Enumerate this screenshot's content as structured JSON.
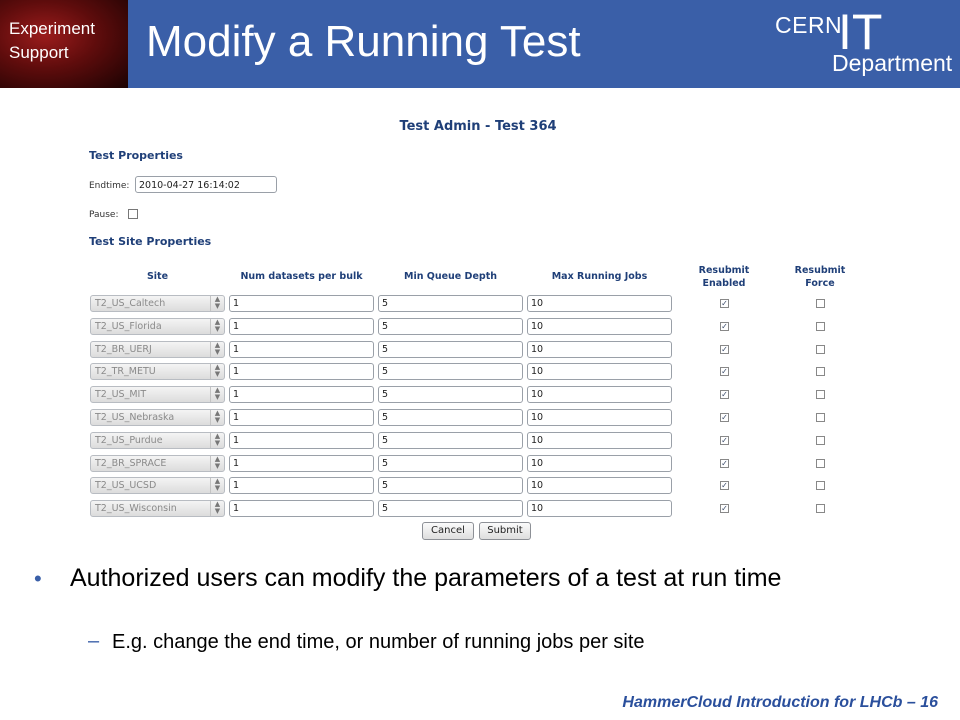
{
  "slide": {
    "corner_line1": "Experiment",
    "corner_line2": "Support",
    "title": "Modify a Running Test",
    "logo_cern": "CERN",
    "logo_it": "IT",
    "logo_department": "Department",
    "bullet": "Authorized users can modify the parameters of a test at run time",
    "sub_bullet": "E.g. change the end time, or number of running jobs per site",
    "footer": "HammerCloud Introduction for LHCb – 16"
  },
  "admin": {
    "title": "Test Admin - Test 364",
    "test_properties": "Test Properties",
    "endtime_label": "Endtime:",
    "endtime_value": "2010-04-27 16:14:02",
    "pause_label": "Pause:",
    "site_properties": "Test Site Properties",
    "headers": {
      "site": "Site",
      "num_datasets": "Num datasets per bulk",
      "min_queue": "Min Queue Depth",
      "max_running": "Max Running Jobs",
      "resubmit_enabled": "Resubmit Enabled",
      "resubmit_force": "Resubmit Force"
    },
    "rows": [
      {
        "site": "T2_US_Caltech",
        "num": "1",
        "minq": "5",
        "maxrun": "10",
        "enabled": true,
        "force": false
      },
      {
        "site": "T2_US_Florida",
        "num": "1",
        "minq": "5",
        "maxrun": "10",
        "enabled": true,
        "force": false
      },
      {
        "site": "T2_BR_UERJ",
        "num": "1",
        "minq": "5",
        "maxrun": "10",
        "enabled": true,
        "force": false
      },
      {
        "site": "T2_TR_METU",
        "num": "1",
        "minq": "5",
        "maxrun": "10",
        "enabled": true,
        "force": false
      },
      {
        "site": "T2_US_MIT",
        "num": "1",
        "minq": "5",
        "maxrun": "10",
        "enabled": true,
        "force": false
      },
      {
        "site": "T2_US_Nebraska",
        "num": "1",
        "minq": "5",
        "maxrun": "10",
        "enabled": true,
        "force": false
      },
      {
        "site": "T2_US_Purdue",
        "num": "1",
        "minq": "5",
        "maxrun": "10",
        "enabled": true,
        "force": false
      },
      {
        "site": "T2_BR_SPRACE",
        "num": "1",
        "minq": "5",
        "maxrun": "10",
        "enabled": true,
        "force": false
      },
      {
        "site": "T2_US_UCSD",
        "num": "1",
        "minq": "5",
        "maxrun": "10",
        "enabled": true,
        "force": false
      },
      {
        "site": "T2_US_Wisconsin",
        "num": "1",
        "minq": "5",
        "maxrun": "10",
        "enabled": true,
        "force": false
      }
    ],
    "cancel_label": "Cancel",
    "submit_label": "Submit"
  }
}
